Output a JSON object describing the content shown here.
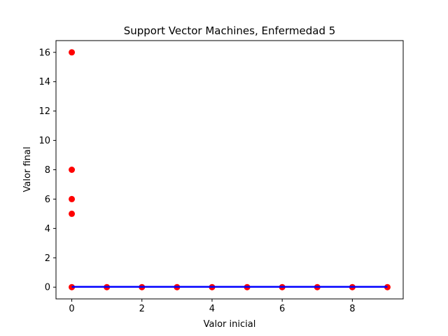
{
  "chart_data": {
    "type": "scatter",
    "title": "Support Vector Machines, Enfermedad 5",
    "xlabel": "Valor inicial",
    "ylabel": "Valor final",
    "xlim": [
      -0.45,
      9.45
    ],
    "ylim": [
      -0.8,
      16.8
    ],
    "xticks": [
      0,
      2,
      4,
      6,
      8
    ],
    "yticks": [
      0,
      2,
      4,
      6,
      8,
      10,
      12,
      14,
      16
    ],
    "grid": false,
    "series": [
      {
        "kind": "scatter",
        "color": "#ff0000",
        "x": [
          0,
          0,
          0,
          0,
          0,
          1,
          2,
          3,
          4,
          5,
          6,
          7,
          8,
          9
        ],
        "y": [
          16,
          8,
          6,
          5,
          0,
          0,
          0,
          0,
          0,
          0,
          0,
          0,
          0,
          0
        ]
      },
      {
        "kind": "line",
        "color": "#0000ff",
        "x": [
          0,
          9
        ],
        "y": [
          0.02,
          0.02
        ]
      }
    ]
  }
}
